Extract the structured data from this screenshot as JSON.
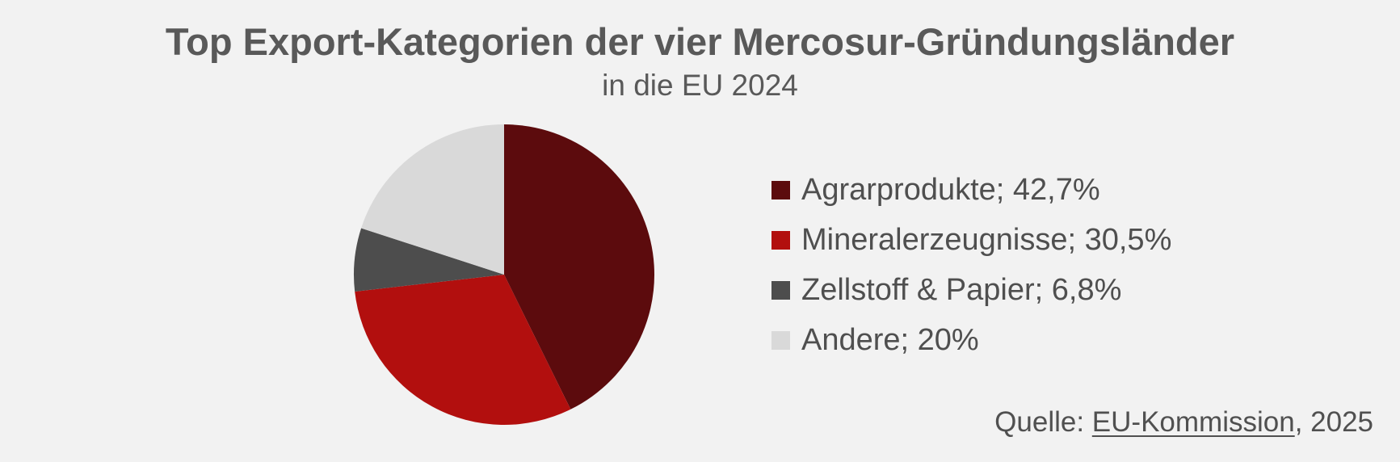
{
  "chart_data": {
    "type": "pie",
    "title": "Top Export-Kategorien der vier Mercosur-Gründungsländer",
    "subtitle": "in die EU 2024",
    "slices": [
      {
        "label": "Agrarprodukte",
        "value": 42.7,
        "legend": "Agrarprodukte; 42,7%",
        "color": "#5c0b0d"
      },
      {
        "label": "Mineralerzeugnisse",
        "value": 30.5,
        "legend": "Mineralerzeugnisse; 30,5%",
        "color": "#b20f0e"
      },
      {
        "label": "Zellstoff & Papier",
        "value": 6.8,
        "legend": "Zellstoff & Papier; 6,8%",
        "color": "#4d4d4d"
      },
      {
        "label": "Andere",
        "value": 20,
        "legend": "Andere; 20%",
        "color": "#d9d9d9"
      }
    ],
    "start_angle": "12 o'clock",
    "direction": "clockwise",
    "legend_position": "right"
  },
  "source": {
    "prefix": "Quelle: ",
    "link_text": "EU-Kommission",
    "suffix": ", 2025"
  },
  "colors": {
    "background": "#f2f2f2",
    "text": "#595959"
  }
}
